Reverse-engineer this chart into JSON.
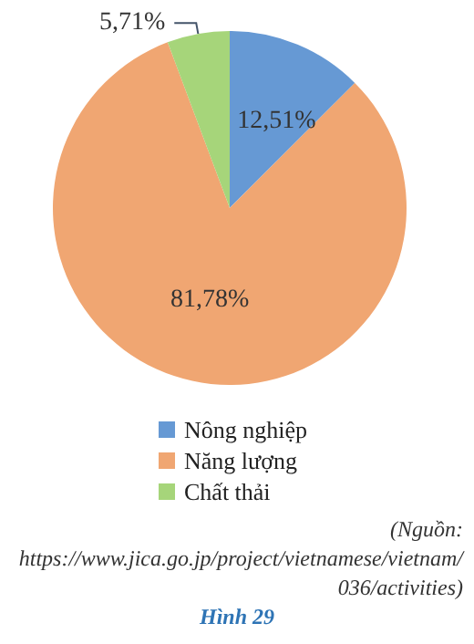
{
  "chart_data": {
    "type": "pie",
    "categories": [
      "Nông nghiệp",
      "Năng lượng",
      "Chất thải"
    ],
    "values": [
      12.51,
      81.78,
      5.71
    ],
    "colors": [
      "#6699d4",
      "#f0a672",
      "#a6d57a"
    ],
    "value_labels": [
      "12,51%",
      "81,78%",
      "5,71%"
    ],
    "legend": "bottom",
    "annotations": [
      "(Nguồn: https://www.jica.go.jp/project/vietnamese/vietnam/036/activities)",
      "Hình 29"
    ]
  }
}
